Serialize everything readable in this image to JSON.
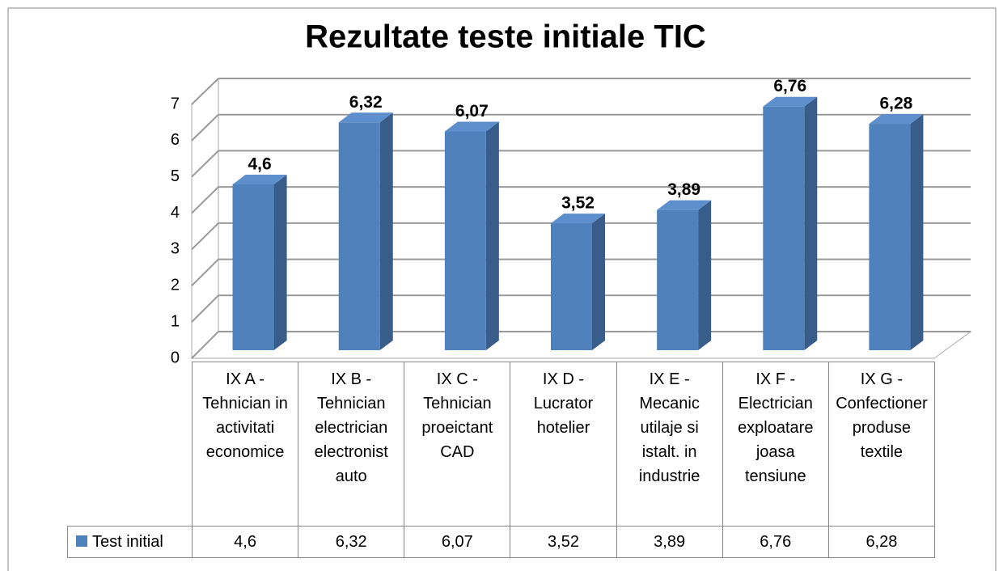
{
  "chart_data": {
    "type": "bar3d",
    "title": "Rezultate teste initiale TIC",
    "categories": [
      "IX A - Tehnician in activitati economice",
      "IX B - Tehnician electrician electronist auto",
      "IX C - Tehnician proeictant CAD",
      "IX D - Lucrator hotelier",
      "IX E - Mecanic utilaje si istalt. in industrie",
      "IX F - Electrician exploatare joasa tensiune",
      "IX G - Confectioner produse textile"
    ],
    "series": [
      {
        "name": "Test initial",
        "color": "#4f81bd",
        "values": [
          4.6,
          6.32,
          6.07,
          3.52,
          3.89,
          6.76,
          6.28
        ],
        "value_labels": [
          "4,6",
          "6,32",
          "6,07",
          "3,52",
          "3,89",
          "6,76",
          "6,28"
        ]
      }
    ],
    "ylim": [
      0,
      7
    ],
    "yticks": [
      0,
      1,
      2,
      3,
      4,
      5,
      6,
      7
    ],
    "grid": true,
    "data_table": true
  }
}
